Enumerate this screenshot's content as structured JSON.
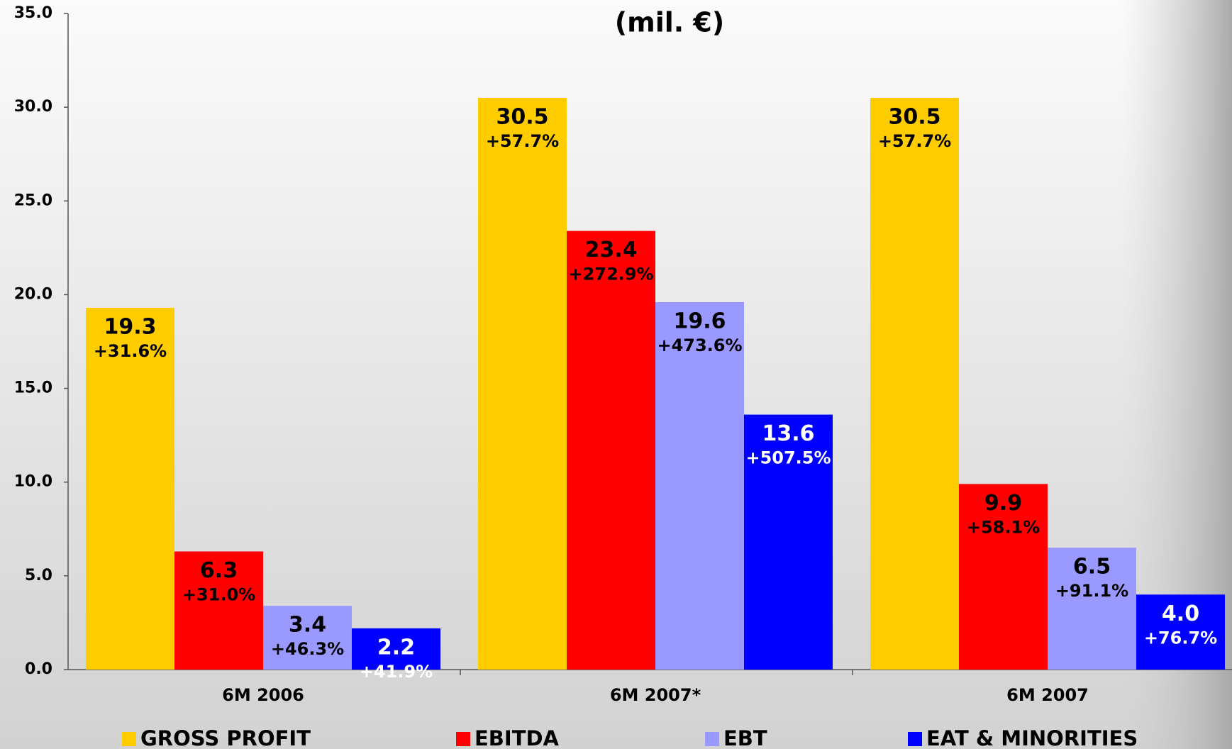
{
  "chart_data": {
    "type": "bar",
    "title": "(mil. €)",
    "categories": [
      "6M 2006",
      "6M 2007*",
      "6M 2007"
    ],
    "series": [
      {
        "name": "GROSS PROFIT",
        "color": "#ffcc00",
        "label_color": "#000000",
        "values": [
          19.3,
          30.5,
          30.5
        ],
        "value_labels": [
          "19.3",
          "30.5",
          "30.5"
        ],
        "growth_labels": [
          "+31.6%",
          "+57.7%",
          "+57.7%"
        ]
      },
      {
        "name": "EBITDA",
        "color": "#ff0000",
        "label_color": "#000000",
        "values": [
          6.3,
          23.4,
          9.9
        ],
        "value_labels": [
          "6.3",
          "23.4",
          "9.9"
        ],
        "growth_labels": [
          "+31.0%",
          "+272.9%",
          "+58.1%"
        ]
      },
      {
        "name": "EBT",
        "color": "#9999ff",
        "label_color": "#000000",
        "values": [
          3.4,
          19.6,
          6.5
        ],
        "value_labels": [
          "3.4",
          "19.6",
          "6.5"
        ],
        "growth_labels": [
          "+46.3%",
          "+473.6%",
          "+91.1%"
        ]
      },
      {
        "name": "EAT & MINORITIES",
        "color": "#0000ff",
        "label_color": "#ffffff",
        "values": [
          2.2,
          13.6,
          4.0
        ],
        "value_labels": [
          "2.2",
          "13.6",
          "4.0"
        ],
        "growth_labels": [
          "+41.9%",
          "+507.5%",
          "+76.7%"
        ]
      }
    ],
    "ylim": [
      0,
      35
    ],
    "yticks": [
      {
        "value": 0,
        "label": "0.0"
      },
      {
        "value": 5,
        "label": "5.0"
      },
      {
        "value": 10,
        "label": "10.0"
      },
      {
        "value": 15,
        "label": "15.0"
      },
      {
        "value": 20,
        "label": "20.0"
      },
      {
        "value": 25,
        "label": "25.0"
      },
      {
        "value": 30,
        "label": "30.0"
      },
      {
        "value": 35,
        "label": "35.0"
      }
    ]
  }
}
